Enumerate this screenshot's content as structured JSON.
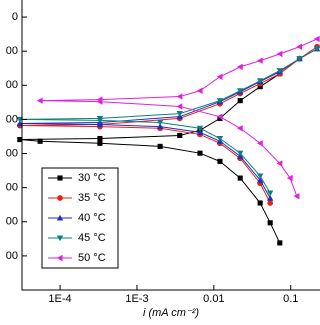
{
  "chart_data": {
    "type": "line",
    "x_label": "i (mA cm⁻²)",
    "x_scale": "log",
    "xlim": [
      3.2e-05,
      0.24
    ],
    "ylim": [
      -1000,
      -150
    ],
    "xticks": [
      {
        "value": 0.0001,
        "label": "1E-4"
      },
      {
        "value": 0.001,
        "label": "1E-3"
      },
      0.01,
      0.1
    ],
    "yticks": [
      {
        "value": -200,
        "label": "0"
      },
      {
        "value": -300,
        "label": "00"
      },
      {
        "value": -400,
        "label": "00"
      },
      {
        "value": -500,
        "label": "00"
      },
      {
        "value": -600,
        "label": "00"
      },
      {
        "value": -700,
        "label": "00"
      },
      {
        "value": -800,
        "label": "00"
      },
      {
        "value": -900,
        "label": "00"
      }
    ],
    "legend": "lower left",
    "series": [
      {
        "name": "30 °C",
        "color": "#000000",
        "marker": "square",
        "x": [
          0.072,
          0.054,
          0.04,
          0.022,
          0.012,
          0.0066,
          0.002,
          0.00033,
          5.5e-05,
          3e-05,
          0.00033,
          0.0036,
          0.0066,
          0.012,
          0.022,
          0.04,
          0.072
        ],
        "y": [
          -862,
          -803,
          -745,
          -672,
          -623,
          -599,
          -579,
          -570,
          -564,
          -559,
          -556,
          -547,
          -532,
          -497,
          -445,
          -404,
          -366
        ]
      },
      {
        "name": "35 °C",
        "color": "#e8201a",
        "marker": "circle",
        "x": [
          0.054,
          0.04,
          0.022,
          0.012,
          0.0066,
          0.002,
          0.00033,
          3e-05,
          0.00033,
          0.0036,
          0.012,
          0.022,
          0.04,
          0.072,
          0.13,
          0.22
        ],
        "y": [
          -745,
          -687,
          -614,
          -570,
          -544,
          -526,
          -521,
          -518,
          -515,
          -497,
          -454,
          -424,
          -395,
          -366,
          -322,
          -287
        ]
      },
      {
        "name": "40 °C",
        "color": "#1f2fbf",
        "marker": "triangle-up",
        "x": [
          0.054,
          0.04,
          0.022,
          0.012,
          0.0066,
          0.002,
          0.00033,
          3e-05,
          0.00033,
          0.0036,
          0.012,
          0.022,
          0.04,
          0.072,
          0.13,
          0.22
        ],
        "y": [
          -731,
          -678,
          -608,
          -564,
          -538,
          -521,
          -515,
          -512,
          -509,
          -492,
          -448,
          -419,
          -389,
          -360,
          -322,
          -293
        ]
      },
      {
        "name": "45 °C",
        "color": "#0f7f7f",
        "marker": "triangle-down",
        "x": [
          0.054,
          0.04,
          0.022,
          0.012,
          0.0066,
          0.002,
          0.00033,
          3e-05,
          0.00033,
          0.0036,
          0.012,
          0.022,
          0.04,
          0.072,
          0.13,
          0.22
        ],
        "y": [
          -716,
          -666,
          -599,
          -556,
          -526,
          -509,
          -503,
          -500,
          -497,
          -483,
          -445,
          -416,
          -387,
          -357,
          -322,
          -293
        ]
      },
      {
        "name": "50 °C",
        "color": "#e020e0",
        "marker": "triangle-left",
        "x": [
          0.12,
          0.098,
          0.072,
          0.04,
          0.022,
          0.012,
          0.0036,
          0.00033,
          5.5e-05,
          0.00033,
          0.0036,
          0.0066,
          0.012,
          0.022,
          0.04,
          0.072,
          0.13,
          0.22
        ],
        "y": [
          -725,
          -672,
          -629,
          -570,
          -526,
          -492,
          -462,
          -448,
          -445,
          -442,
          -433,
          -416,
          -375,
          -346,
          -328,
          -308,
          -287,
          -264
        ]
      }
    ]
  }
}
